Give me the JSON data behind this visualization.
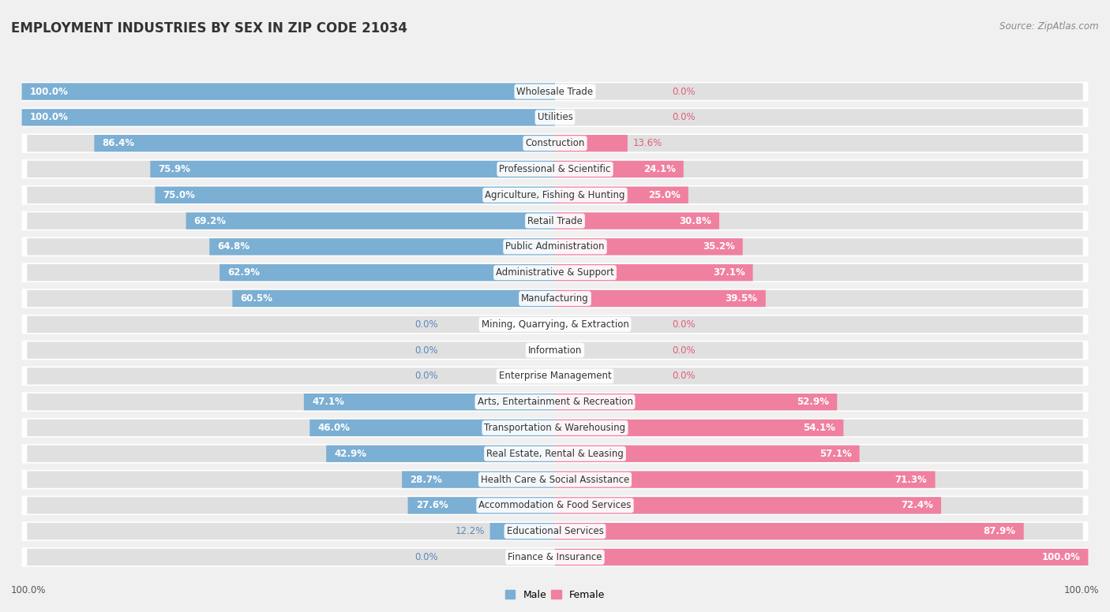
{
  "title": "EMPLOYMENT INDUSTRIES BY SEX IN ZIP CODE 21034",
  "source": "Source: ZipAtlas.com",
  "industries": [
    {
      "name": "Wholesale Trade",
      "male": 100.0,
      "female": 0.0
    },
    {
      "name": "Utilities",
      "male": 100.0,
      "female": 0.0
    },
    {
      "name": "Construction",
      "male": 86.4,
      "female": 13.6
    },
    {
      "name": "Professional & Scientific",
      "male": 75.9,
      "female": 24.1
    },
    {
      "name": "Agriculture, Fishing & Hunting",
      "male": 75.0,
      "female": 25.0
    },
    {
      "name": "Retail Trade",
      "male": 69.2,
      "female": 30.8
    },
    {
      "name": "Public Administration",
      "male": 64.8,
      "female": 35.2
    },
    {
      "name": "Administrative & Support",
      "male": 62.9,
      "female": 37.1
    },
    {
      "name": "Manufacturing",
      "male": 60.5,
      "female": 39.5
    },
    {
      "name": "Mining, Quarrying, & Extraction",
      "male": 0.0,
      "female": 0.0
    },
    {
      "name": "Information",
      "male": 0.0,
      "female": 0.0
    },
    {
      "name": "Enterprise Management",
      "male": 0.0,
      "female": 0.0
    },
    {
      "name": "Arts, Entertainment & Recreation",
      "male": 47.1,
      "female": 52.9
    },
    {
      "name": "Transportation & Warehousing",
      "male": 46.0,
      "female": 54.1
    },
    {
      "name": "Real Estate, Rental & Leasing",
      "male": 42.9,
      "female": 57.1
    },
    {
      "name": "Health Care & Social Assistance",
      "male": 28.7,
      "female": 71.3
    },
    {
      "name": "Accommodation & Food Services",
      "male": 27.6,
      "female": 72.4
    },
    {
      "name": "Educational Services",
      "male": 12.2,
      "female": 87.9
    },
    {
      "name": "Finance & Insurance",
      "male": 0.0,
      "female": 100.0
    }
  ],
  "male_color": "#7bafd4",
  "female_color": "#f080a0",
  "male_text_color": "#5a8abf",
  "female_text_color": "#e0607a",
  "bg_color": "#f0f0f0",
  "row_bg_color": "#ffffff",
  "bar_bg_color": "#e0e0e0",
  "title_color": "#333333",
  "source_color": "#888888",
  "label_color": "#444444",
  "label_fontsize": 8.5,
  "title_fontsize": 12,
  "source_fontsize": 8.5
}
